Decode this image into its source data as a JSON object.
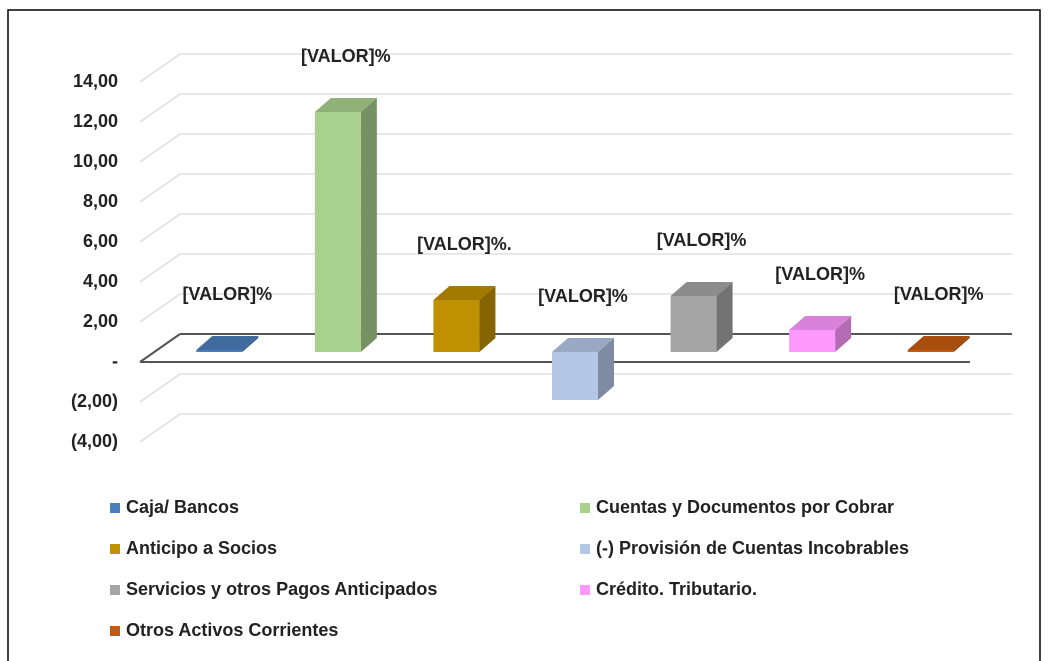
{
  "chart_data": {
    "type": "bar3d",
    "series": [
      {
        "name": "Caja/ Bancos",
        "color": "#4a7ebb",
        "values": [
          0.1
        ],
        "value_labels": [
          "[VALOR]%"
        ]
      },
      {
        "name": "Cuentas  y Documentos por Cobrar",
        "color": "#a9d18e",
        "values": [
          12
        ],
        "value_labels": [
          "[VALOR]%"
        ]
      },
      {
        "name": "Anticipo a Socios",
        "color": "#bf9000",
        "values": [
          2.6
        ],
        "value_labels": [
          "[VALOR]%."
        ]
      },
      {
        "name": "(-) Provisión de Cuentas Incobrables",
        "color": "#b4c7e7",
        "values": [
          -2.4
        ],
        "value_labels": [
          "[VALOR]%"
        ]
      },
      {
        "name": "Servicios  y otros Pagos Anticipados",
        "color": "#a5a5a5",
        "values": [
          2.8
        ],
        "value_labels": [
          "[VALOR]%"
        ]
      },
      {
        "name": "Crédito. Tributario.",
        "color": "#ff99ff",
        "values": [
          1.1
        ],
        "value_labels": [
          "[VALOR]%"
        ]
      },
      {
        "name": "Otros Activos Corrientes",
        "color": "#c55a11",
        "values": [
          0.1
        ],
        "value_labels": [
          "[VALOR]%"
        ]
      }
    ],
    "ylim": [
      -4,
      14
    ],
    "yticks": [
      {
        "value": 14,
        "label": "14,00"
      },
      {
        "value": 12,
        "label": "12,00"
      },
      {
        "value": 10,
        "label": "10,00"
      },
      {
        "value": 8,
        "label": "8,00"
      },
      {
        "value": 6,
        "label": "6,00"
      },
      {
        "value": 4,
        "label": "4,00"
      },
      {
        "value": 2,
        "label": "2,00"
      },
      {
        "value": 0,
        "label": "-"
      },
      {
        "value": -2,
        "label": "(2,00)"
      },
      {
        "value": -4,
        "label": "(4,00)"
      }
    ],
    "grid": true,
    "legend": "bottom"
  }
}
